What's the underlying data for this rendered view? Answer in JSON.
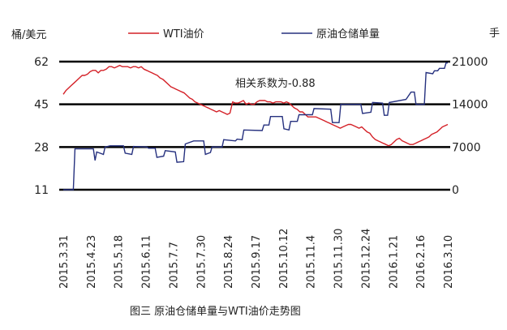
{
  "chart_data": {
    "type": "line",
    "caption": "图三 原油仓储单量与WTI油价走势图",
    "annotation": "相关系数为-0.88",
    "left_axis": {
      "unit_label": "桶/美元",
      "ticks": [
        11,
        28,
        45,
        62
      ],
      "range": [
        11,
        62
      ]
    },
    "right_axis": {
      "unit_label": "手",
      "ticks": [
        0,
        7000,
        14000,
        21000
      ],
      "range": [
        0,
        21000
      ]
    },
    "x_labels": [
      "2015.3.31",
      "2015.4.23",
      "2015.5.18",
      "2015.6.11",
      "2015.7.7",
      "2015.7.30",
      "2015.8.24",
      "2015.9.17",
      "2015.10.12",
      "2015.11.4",
      "2015.11.30",
      "2015.12.24",
      "2016.1.21",
      "2016.2.16",
      "2016.3.10"
    ],
    "grid": "horizontal lines at each tick",
    "legend_position": "top",
    "series": [
      {
        "name": "WTI油价",
        "axis": "left",
        "color": "#d42027",
        "values": [
          49,
          50.5,
          51.5,
          52.5,
          53.5,
          54.5,
          55.5,
          56.5,
          56.5,
          57,
          58,
          58.5,
          58.5,
          57.5,
          58.5,
          58.5,
          59,
          60,
          60,
          59.5,
          60,
          60.5,
          60,
          60,
          60,
          59.5,
          60,
          60,
          59.5,
          60,
          59,
          58.5,
          58,
          57.5,
          57,
          56.5,
          55.5,
          55,
          54,
          53,
          52,
          51.5,
          51,
          50.5,
          50,
          49.5,
          48.5,
          47.5,
          47,
          46,
          45.5,
          45,
          44.5,
          44,
          43.5,
          43,
          42.5,
          42,
          42.5,
          42,
          41.5,
          41,
          41.5,
          46,
          45.5,
          45.5,
          46,
          46.5,
          45,
          45.5,
          45,
          45,
          46,
          46.5,
          46.5,
          46.5,
          46,
          46,
          45.5,
          46,
          46,
          46,
          45.5,
          46,
          45.5,
          44.5,
          43.5,
          43,
          42,
          42,
          41,
          40,
          40,
          40,
          40,
          39.5,
          39,
          38.5,
          38,
          37.5,
          37,
          36.5,
          36,
          35.5,
          36,
          36.5,
          37,
          37,
          36.5,
          36,
          35.5,
          36,
          35,
          34,
          33.5,
          32,
          31,
          30.5,
          30,
          29.5,
          29,
          28.5,
          29,
          30,
          31,
          31.5,
          30.5,
          30,
          29.5,
          29,
          29,
          29.5,
          30,
          30.5,
          31,
          31.5,
          32,
          33,
          33.5,
          34,
          35,
          36,
          36.5,
          37
        ]
      },
      {
        "name": "原油仓储单量",
        "axis": "right",
        "color": "#26317f",
        "points": [
          [
            0,
            0
          ],
          [
            6,
            0
          ],
          [
            7,
            6700
          ],
          [
            18,
            6700
          ],
          [
            19,
            4800
          ],
          [
            20,
            6200
          ],
          [
            24,
            5800
          ],
          [
            25,
            7000
          ],
          [
            28,
            7200
          ],
          [
            36,
            7200
          ],
          [
            37,
            6000
          ],
          [
            41,
            5800
          ],
          [
            42,
            7100
          ],
          [
            50,
            7000
          ],
          [
            51,
            6800
          ],
          [
            55,
            6800
          ],
          [
            56,
            5300
          ],
          [
            60,
            5500
          ],
          [
            61,
            6400
          ],
          [
            67,
            6200
          ],
          [
            68,
            4500
          ],
          [
            72,
            4600
          ],
          [
            73,
            7500
          ],
          [
            78,
            8000
          ],
          [
            84,
            8000
          ],
          [
            85,
            5800
          ],
          [
            88,
            6100
          ],
          [
            89,
            7000
          ],
          [
            95,
            7000
          ],
          [
            96,
            8200
          ],
          [
            103,
            8000
          ],
          [
            104,
            8300
          ],
          [
            107,
            8200
          ],
          [
            108,
            9800
          ],
          [
            119,
            9700
          ],
          [
            120,
            10600
          ],
          [
            123,
            10600
          ],
          [
            124,
            12000
          ],
          [
            131,
            12000
          ],
          [
            132,
            10000
          ],
          [
            135,
            9800
          ],
          [
            136,
            11200
          ],
          [
            140,
            11200
          ],
          [
            141,
            12300
          ],
          [
            149,
            12300
          ],
          [
            150,
            13300
          ],
          [
            160,
            13200
          ],
          [
            161,
            11000
          ],
          [
            165,
            11000
          ],
          [
            166,
            14000
          ],
          [
            178,
            14000
          ],
          [
            179,
            12500
          ],
          [
            184,
            12700
          ],
          [
            185,
            14300
          ],
          [
            191,
            14200
          ],
          [
            192,
            12200
          ],
          [
            194,
            12200
          ],
          [
            195,
            14300
          ],
          [
            205,
            14800
          ],
          [
            208,
            16000
          ],
          [
            210,
            16000
          ],
          [
            211,
            14000
          ],
          [
            216,
            14000
          ],
          [
            217,
            19200
          ],
          [
            221,
            19000
          ],
          [
            222,
            19500
          ],
          [
            224,
            19500
          ],
          [
            225,
            19900
          ],
          [
            228,
            19900
          ],
          [
            229,
            20800
          ],
          [
            230,
            20800
          ]
        ]
      }
    ]
  }
}
